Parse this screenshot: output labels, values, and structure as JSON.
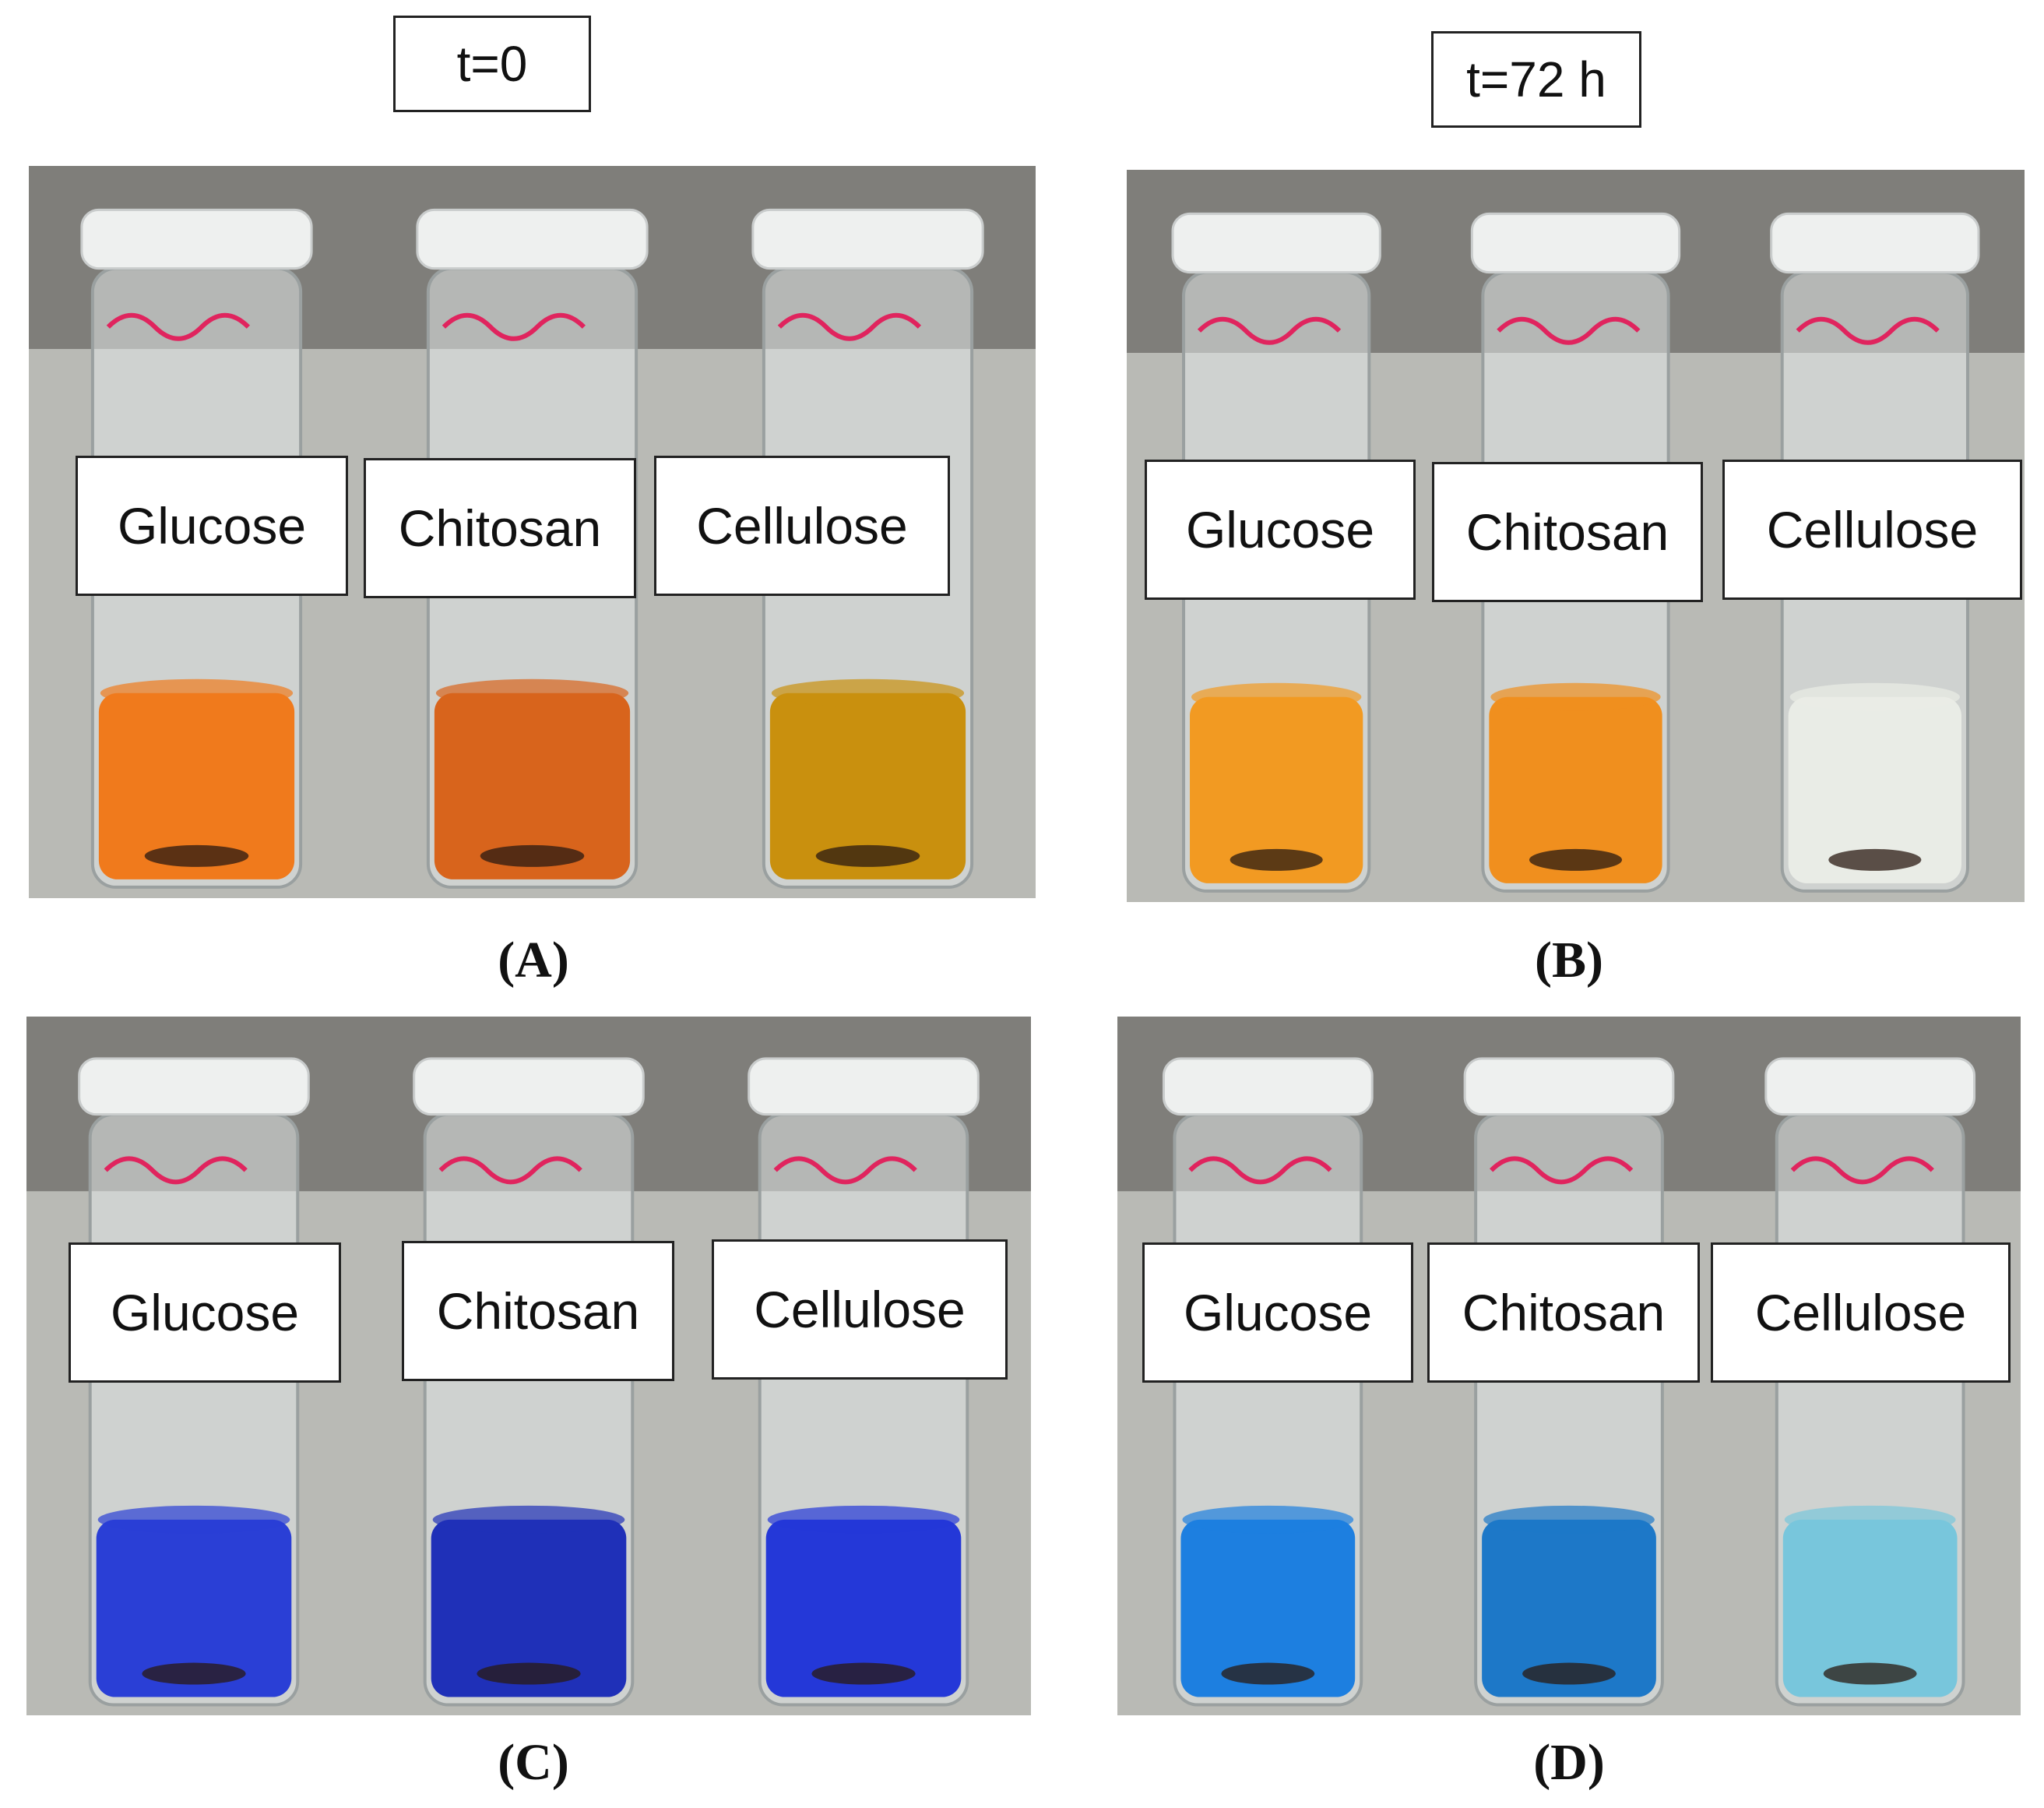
{
  "time_labels": {
    "t0": "t=0",
    "t72": "t=72 h"
  },
  "panels": {
    "A": {
      "caption": "(A)",
      "labels": [
        "Glucose",
        "Chitosan",
        "Cellulose"
      ],
      "liquid_colors": [
        "#f07a1c",
        "#d8641c",
        "#c9900e"
      ]
    },
    "B": {
      "caption": "(B)",
      "labels": [
        "Glucose",
        "Chitosan",
        "Cellulose"
      ],
      "liquid_colors": [
        "#f29a22",
        "#f08f1e",
        "#e9ece6"
      ]
    },
    "C": {
      "caption": "(C)",
      "labels": [
        "Glucose",
        "Chitosan",
        "Cellulose"
      ],
      "liquid_colors": [
        "#2a3fd6",
        "#1f30b8",
        "#2438d8"
      ]
    },
    "D": {
      "caption": "(D)",
      "labels": [
        "Glucose",
        "Chitosan",
        "Cellulose"
      ],
      "liquid_colors": [
        "#1d7fe0",
        "#1d78c8",
        "#78c6dc"
      ]
    }
  }
}
